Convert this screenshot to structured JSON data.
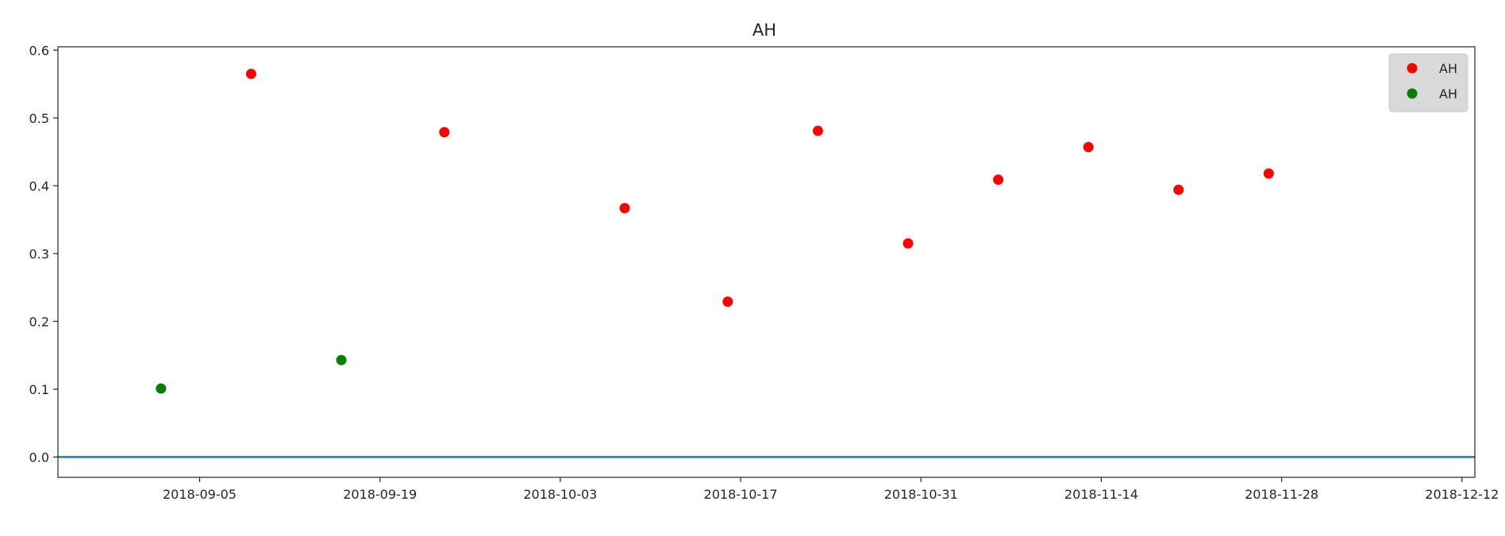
{
  "chart_data": {
    "type": "scatter",
    "title": "AH",
    "xlabel": "",
    "ylabel": "",
    "x_axis_type": "date",
    "xlim": [
      "2018-08-25",
      "2018-12-13"
    ],
    "ylim": [
      -0.03,
      0.605
    ],
    "x_ticks": [
      "2018-09-05",
      "2018-09-19",
      "2018-10-03",
      "2018-10-17",
      "2018-10-31",
      "2018-11-14",
      "2018-11-28",
      "2018-12-12"
    ],
    "y_ticks": [
      0.0,
      0.1,
      0.2,
      0.3,
      0.4,
      0.5,
      0.6
    ],
    "y_tick_labels": [
      "0.0",
      "0.1",
      "0.2",
      "0.3",
      "0.4",
      "0.5",
      "0.6"
    ],
    "grid": false,
    "legend_position": "top-right",
    "horizontal_line": {
      "y": 0.0,
      "color": "#1f77b4"
    },
    "series": [
      {
        "name": "AH",
        "color": "#ff0000",
        "points": [
          {
            "x": "2018-09-09",
            "y": 0.565
          },
          {
            "x": "2018-09-24",
            "y": 0.479
          },
          {
            "x": "2018-10-08",
            "y": 0.367
          },
          {
            "x": "2018-10-16",
            "y": 0.229
          },
          {
            "x": "2018-10-23",
            "y": 0.481
          },
          {
            "x": "2018-10-30",
            "y": 0.315
          },
          {
            "x": "2018-11-06",
            "y": 0.409
          },
          {
            "x": "2018-11-13",
            "y": 0.457
          },
          {
            "x": "2018-11-20",
            "y": 0.394
          },
          {
            "x": "2018-11-27",
            "y": 0.418
          }
        ]
      },
      {
        "name": "AH",
        "color": "#008000",
        "points": [
          {
            "x": "2018-09-02",
            "y": 0.101
          },
          {
            "x": "2018-09-16",
            "y": 0.143
          }
        ]
      }
    ]
  }
}
